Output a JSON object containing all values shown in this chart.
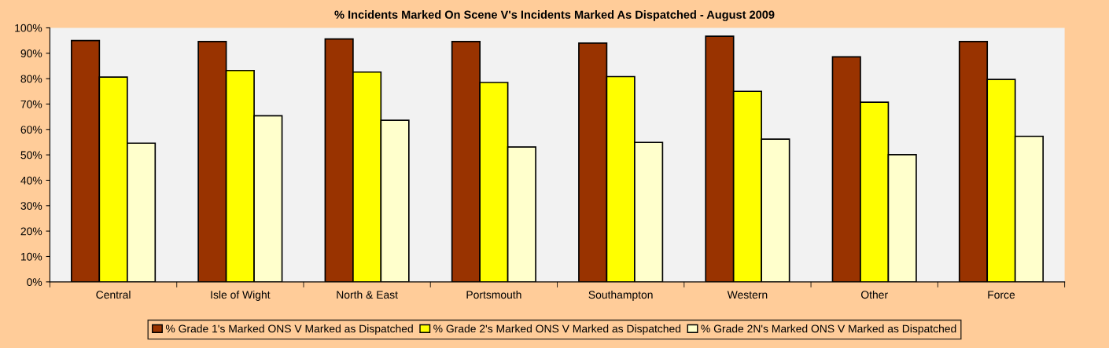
{
  "chart_data": {
    "type": "bar",
    "title": "% Incidents Marked On Scene V's Incidents Marked As Dispatched - August 2009",
    "categories": [
      "Central",
      "Isle of Wight",
      "North & East",
      "Portsmouth",
      "Southampton",
      "Western",
      "Other",
      "Force"
    ],
    "series": [
      {
        "name": "% Grade 1's Marked ONS V Marked as Dispatched",
        "color": "#993300",
        "values": [
          95.0,
          94.6,
          95.6,
          94.6,
          94.0,
          96.7,
          88.6,
          94.6
        ]
      },
      {
        "name": "% Grade 2's Marked ONS V Marked as Dispatched",
        "color": "#ffff00",
        "values": [
          80.6,
          83.2,
          82.6,
          78.5,
          80.8,
          75.0,
          70.7,
          79.7
        ]
      },
      {
        "name": "% Grade 2N's Marked ONS V Marked as Dispatched",
        "color": "#ffffcc",
        "values": [
          54.6,
          65.4,
          63.6,
          53.1,
          54.9,
          56.2,
          50.1,
          57.3
        ]
      }
    ],
    "ylim": [
      0,
      100
    ],
    "yticks": [
      {
        "value": 0,
        "label": "0%"
      },
      {
        "value": 10,
        "label": "10%"
      },
      {
        "value": 20,
        "label": "20%"
      },
      {
        "value": 30,
        "label": "30%"
      },
      {
        "value": 40,
        "label": "40%"
      },
      {
        "value": 50,
        "label": "50%"
      },
      {
        "value": 60,
        "label": "60%"
      },
      {
        "value": 70,
        "label": "70%"
      },
      {
        "value": 80,
        "label": "80%"
      },
      {
        "value": 90,
        "label": "90%"
      },
      {
        "value": 100,
        "label": "100%"
      }
    ],
    "grid": false,
    "legend": "bottom"
  }
}
